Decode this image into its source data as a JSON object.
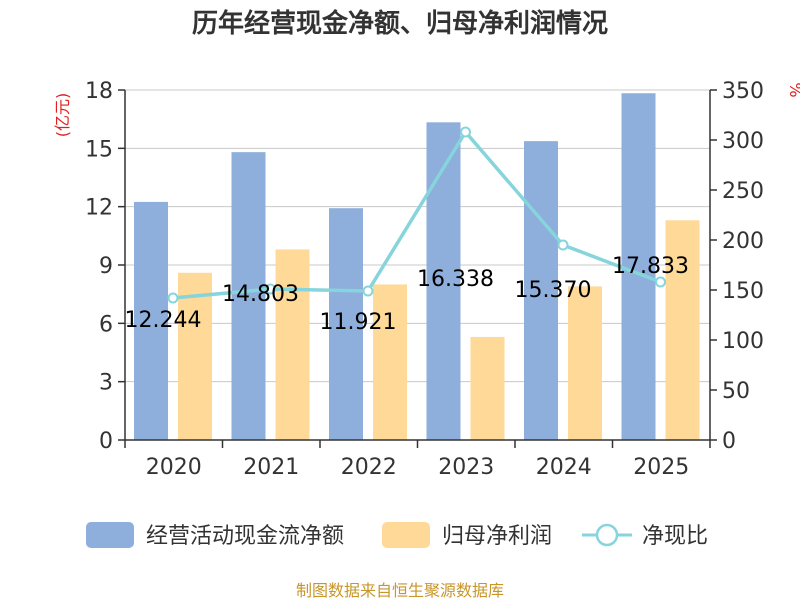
{
  "chart_data": {
    "type": "bar",
    "title": "历年经营现金净额、归母净利润情况",
    "categories": [
      "2020",
      "2021",
      "2022",
      "2023",
      "2024",
      "2025"
    ],
    "left_axis": {
      "unit": "(亿元)",
      "ylim": [
        0,
        18
      ],
      "ticks": [
        0,
        3,
        6,
        9,
        12,
        15,
        18
      ]
    },
    "right_axis": {
      "unit": "%",
      "ylim": [
        0,
        350
      ],
      "ticks": [
        0,
        50,
        100,
        150,
        200,
        250,
        300,
        350
      ]
    },
    "series": [
      {
        "name": "经营活动现金流净额",
        "type": "bar",
        "axis": "left",
        "color": "#8eaedb",
        "values": [
          12.244,
          14.803,
          11.921,
          16.338,
          15.37,
          17.833
        ],
        "labels": [
          "12.244",
          "14.803",
          "11.921",
          "16.338",
          "15.370",
          "17.833"
        ]
      },
      {
        "name": "归母净利润",
        "type": "bar",
        "axis": "left",
        "color": "#fed998",
        "values": [
          8.6,
          9.8,
          8.0,
          5.3,
          7.9,
          11.3
        ]
      },
      {
        "name": "净现比",
        "type": "line",
        "axis": "right",
        "color": "#86d4dc",
        "values": [
          142,
          151,
          149,
          308,
          195,
          158
        ]
      }
    ],
    "grid": true,
    "legend_position": "bottom",
    "source": "制图数据来自恒生聚源数据库"
  }
}
